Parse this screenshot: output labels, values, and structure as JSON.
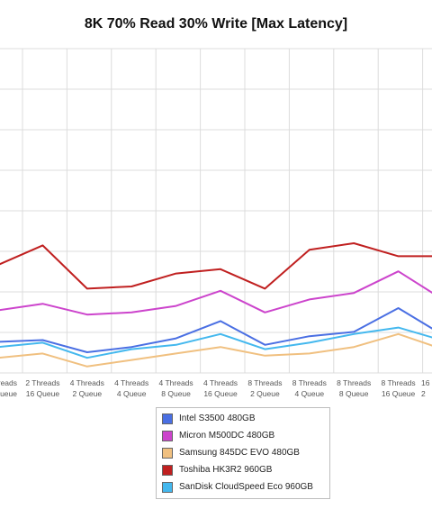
{
  "chart_data": {
    "type": "line",
    "title": "8K 70% Read 30% Write [Max Latency]",
    "xlabel": "",
    "ylabel": "",
    "ylim": [
      0,
      7.5
    ],
    "grid": true,
    "legend_position": "bottom-center",
    "categories": [
      [
        "Threads",
        "Queue"
      ],
      [
        "2 Threads",
        "16 Queue"
      ],
      [
        "4 Threads",
        "2 Queue"
      ],
      [
        "4 Threads",
        "4 Queue"
      ],
      [
        "4 Threads",
        "8 Queue"
      ],
      [
        "4 Threads",
        "16 Queue"
      ],
      [
        "8 Threads",
        "2 Queue"
      ],
      [
        "8 Threads",
        "4 Queue"
      ],
      [
        "8 Threads",
        "8 Queue"
      ],
      [
        "8 Threads",
        "16 Queue"
      ],
      [
        "16",
        "2"
      ]
    ],
    "series": [
      {
        "name": "Intel S3500 480GB",
        "color": "#4a6fe3",
        "values": [
          0.72,
          0.76,
          0.48,
          0.6,
          0.8,
          1.2,
          0.65,
          0.85,
          0.95,
          1.5,
          0.88
        ]
      },
      {
        "name": "Micron M500DC 480GB",
        "color": "#cc44cc",
        "values": [
          1.45,
          1.6,
          1.35,
          1.4,
          1.55,
          1.9,
          1.4,
          1.7,
          1.85,
          2.35,
          1.7
        ]
      },
      {
        "name": "Samsung 845DC EVO 480GB",
        "color": "#f0c080",
        "values": [
          0.35,
          0.45,
          0.15,
          0.3,
          0.45,
          0.6,
          0.4,
          0.45,
          0.6,
          0.9,
          0.55
        ]
      },
      {
        "name": "Toshiba HK3R2 960GB",
        "color": "#c02020",
        "values": [
          2.5,
          2.95,
          1.95,
          2.0,
          2.3,
          2.4,
          1.95,
          2.85,
          3.0,
          2.7,
          2.7
        ]
      },
      {
        "name": "SanDisk CloudSpeed Eco 960GB",
        "color": "#44b8ee",
        "values": [
          0.6,
          0.7,
          0.35,
          0.55,
          0.65,
          0.9,
          0.55,
          0.7,
          0.9,
          1.05,
          0.75
        ]
      }
    ]
  }
}
